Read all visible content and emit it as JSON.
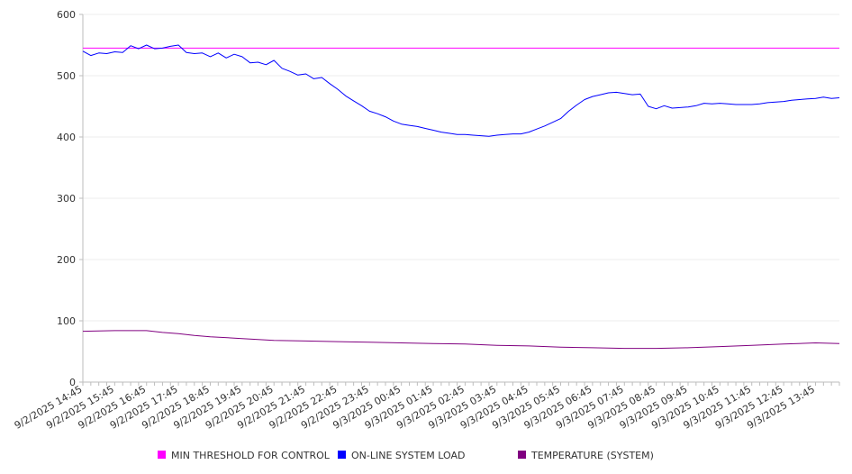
{
  "chart_data": {
    "type": "line",
    "title": "",
    "xlabel": "",
    "ylabel": "",
    "ylim": [
      0,
      600
    ],
    "yticks": [
      "0",
      "100",
      "200",
      "300",
      "400",
      "500",
      "600"
    ],
    "grid": true,
    "legend_position": "bottom",
    "x_start": "9/2/2025 14:45",
    "x_end": "9/3/2025 14:30",
    "x_labels": [
      "9/2/2025 14:45",
      "9/2/2025 15:45",
      "9/2/2025 16:45",
      "9/2/2025 17:45",
      "9/2/2025 18:45",
      "9/2/2025 19:45",
      "9/2/2025 20:45",
      "9/2/2025 21:45",
      "9/2/2025 22:45",
      "9/2/2025 23:45",
      "9/3/2025 00:45",
      "9/3/2025 01:45",
      "9/3/2025 02:45",
      "9/3/2025 03:45",
      "9/3/2025 04:45",
      "9/3/2025 05:45",
      "9/3/2025 06:45",
      "9/3/2025 07:45",
      "9/3/2025 08:45",
      "9/3/2025 09:45",
      "9/3/2025 10:45",
      "9/3/2025 11:45",
      "9/3/2025 12:45",
      "9/3/2025 13:45"
    ],
    "series": [
      {
        "name": "MIN THRESHOLD FOR CONTROL",
        "color": "#ff00ff",
        "points": [
          [
            "9/2/2025 14:45",
            545
          ],
          [
            "9/3/2025 14:30",
            545
          ]
        ]
      },
      {
        "name": "ON-LINE SYSTEM LOAD",
        "color": "#0000ff",
        "points": [
          [
            "9/2/2025 14:45",
            540
          ],
          [
            "9/2/2025 15:00",
            533
          ],
          [
            "9/2/2025 15:15",
            537
          ],
          [
            "9/2/2025 15:30",
            536
          ],
          [
            "9/2/2025 15:45",
            539
          ],
          [
            "9/2/2025 16:00",
            538
          ],
          [
            "9/2/2025 16:15",
            549
          ],
          [
            "9/2/2025 16:30",
            544
          ],
          [
            "9/2/2025 16:45",
            550
          ],
          [
            "9/2/2025 17:00",
            544
          ],
          [
            "9/2/2025 17:15",
            545
          ],
          [
            "9/2/2025 17:30",
            548
          ],
          [
            "9/2/2025 17:45",
            550
          ],
          [
            "9/2/2025 18:00",
            538
          ],
          [
            "9/2/2025 18:15",
            536
          ],
          [
            "9/2/2025 18:30",
            537
          ],
          [
            "9/2/2025 18:45",
            531
          ],
          [
            "9/2/2025 19:00",
            537
          ],
          [
            "9/2/2025 19:15",
            529
          ],
          [
            "9/2/2025 19:30",
            535
          ],
          [
            "9/2/2025 19:45",
            531
          ],
          [
            "9/2/2025 20:00",
            521
          ],
          [
            "9/2/2025 20:15",
            522
          ],
          [
            "9/2/2025 20:30",
            518
          ],
          [
            "9/2/2025 20:45",
            525
          ],
          [
            "9/2/2025 21:00",
            512
          ],
          [
            "9/2/2025 21:15",
            507
          ],
          [
            "9/2/2025 21:30",
            501
          ],
          [
            "9/2/2025 21:45",
            503
          ],
          [
            "9/2/2025 22:00",
            495
          ],
          [
            "9/2/2025 22:15",
            497
          ],
          [
            "9/2/2025 22:30",
            487
          ],
          [
            "9/2/2025 22:45",
            478
          ],
          [
            "9/2/2025 23:00",
            467
          ],
          [
            "9/2/2025 23:15",
            459
          ],
          [
            "9/2/2025 23:30",
            451
          ],
          [
            "9/2/2025 23:45",
            442
          ],
          [
            "9/3/2025 00:00",
            438
          ],
          [
            "9/3/2025 00:15",
            433
          ],
          [
            "9/3/2025 00:30",
            426
          ],
          [
            "9/3/2025 00:45",
            421
          ],
          [
            "9/3/2025 01:00",
            419
          ],
          [
            "9/3/2025 01:15",
            417
          ],
          [
            "9/3/2025 01:30",
            414
          ],
          [
            "9/3/2025 01:45",
            411
          ],
          [
            "9/3/2025 02:00",
            408
          ],
          [
            "9/3/2025 02:15",
            406
          ],
          [
            "9/3/2025 02:30",
            404
          ],
          [
            "9/3/2025 02:45",
            404
          ],
          [
            "9/3/2025 03:00",
            403
          ],
          [
            "9/3/2025 03:15",
            402
          ],
          [
            "9/3/2025 03:30",
            401
          ],
          [
            "9/3/2025 03:45",
            403
          ],
          [
            "9/3/2025 04:00",
            404
          ],
          [
            "9/3/2025 04:15",
            405
          ],
          [
            "9/3/2025 04:30",
            405
          ],
          [
            "9/3/2025 04:45",
            408
          ],
          [
            "9/3/2025 05:00",
            413
          ],
          [
            "9/3/2025 05:15",
            418
          ],
          [
            "9/3/2025 05:30",
            424
          ],
          [
            "9/3/2025 05:45",
            430
          ],
          [
            "9/3/2025 06:00",
            442
          ],
          [
            "9/3/2025 06:15",
            452
          ],
          [
            "9/3/2025 06:30",
            461
          ],
          [
            "9/3/2025 06:45",
            466
          ],
          [
            "9/3/2025 07:00",
            469
          ],
          [
            "9/3/2025 07:15",
            472
          ],
          [
            "9/3/2025 07:30",
            473
          ],
          [
            "9/3/2025 07:45",
            471
          ],
          [
            "9/3/2025 08:00",
            469
          ],
          [
            "9/3/2025 08:15",
            470
          ],
          [
            "9/3/2025 08:30",
            450
          ],
          [
            "9/3/2025 08:45",
            446
          ],
          [
            "9/3/2025 09:00",
            451
          ],
          [
            "9/3/2025 09:15",
            447
          ],
          [
            "9/3/2025 09:30",
            448
          ],
          [
            "9/3/2025 09:45",
            449
          ],
          [
            "9/3/2025 10:00",
            451
          ],
          [
            "9/3/2025 10:15",
            455
          ],
          [
            "9/3/2025 10:30",
            454
          ],
          [
            "9/3/2025 10:45",
            455
          ],
          [
            "9/3/2025 11:00",
            454
          ],
          [
            "9/3/2025 11:15",
            453
          ],
          [
            "9/3/2025 11:30",
            453
          ],
          [
            "9/3/2025 11:45",
            453
          ],
          [
            "9/3/2025 12:00",
            454
          ],
          [
            "9/3/2025 12:15",
            456
          ],
          [
            "9/3/2025 12:30",
            457
          ],
          [
            "9/3/2025 12:45",
            458
          ],
          [
            "9/3/2025 13:00",
            460
          ],
          [
            "9/3/2025 13:15",
            461
          ],
          [
            "9/3/2025 13:30",
            462
          ],
          [
            "9/3/2025 13:45",
            463
          ],
          [
            "9/3/2025 14:00",
            465
          ],
          [
            "9/3/2025 14:15",
            463
          ],
          [
            "9/3/2025 14:30",
            464
          ]
        ]
      },
      {
        "name": "TEMPERATURE (SYSTEM)",
        "color": "#800080",
        "points": [
          [
            "9/2/2025 14:45",
            83
          ],
          [
            "9/2/2025 15:45",
            84
          ],
          [
            "9/2/2025 16:45",
            84
          ],
          [
            "9/2/2025 17:15",
            81
          ],
          [
            "9/2/2025 17:45",
            79
          ],
          [
            "9/2/2025 18:15",
            76
          ],
          [
            "9/2/2025 18:45",
            74
          ],
          [
            "9/2/2025 19:45",
            71
          ],
          [
            "9/2/2025 20:45",
            68
          ],
          [
            "9/2/2025 21:45",
            67
          ],
          [
            "9/2/2025 22:45",
            66
          ],
          [
            "9/2/2025 23:45",
            65
          ],
          [
            "9/3/2025 00:45",
            64
          ],
          [
            "9/3/2025 01:45",
            63
          ],
          [
            "9/3/2025 02:45",
            62
          ],
          [
            "9/3/2025 03:45",
            60
          ],
          [
            "9/3/2025 04:45",
            59
          ],
          [
            "9/3/2025 05:45",
            57
          ],
          [
            "9/3/2025 06:45",
            56
          ],
          [
            "9/3/2025 07:45",
            55
          ],
          [
            "9/3/2025 08:45",
            55
          ],
          [
            "9/3/2025 09:45",
            56
          ],
          [
            "9/3/2025 10:45",
            58
          ],
          [
            "9/3/2025 11:45",
            60
          ],
          [
            "9/3/2025 12:45",
            62
          ],
          [
            "9/3/2025 13:45",
            64
          ],
          [
            "9/3/2025 14:30",
            63
          ]
        ]
      }
    ]
  }
}
